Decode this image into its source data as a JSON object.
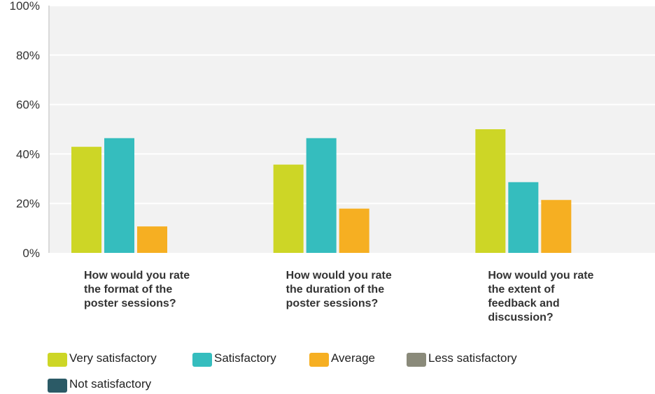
{
  "chart_data": {
    "type": "bar",
    "title": "",
    "xlabel": "",
    "ylabel": "",
    "ylim": [
      0,
      100
    ],
    "y_ticks": [
      "0%",
      "20%",
      "40%",
      "60%",
      "80%",
      "100%"
    ],
    "y_tick_values": [
      0,
      20,
      40,
      60,
      80,
      100
    ],
    "grid": true,
    "legend_position": "bottom",
    "categories": [
      [
        "How would you rate",
        "the format of the",
        "poster sessions?"
      ],
      [
        "How would you rate",
        "the duration of the",
        "poster sessions?"
      ],
      [
        "How would you rate",
        "the extent of",
        "feedback and",
        "discussion?"
      ]
    ],
    "series": [
      {
        "name": "Very satisfactory",
        "color": "#cdd626",
        "values": [
          42.9,
          35.7,
          50.0
        ]
      },
      {
        "name": "Satisfactory",
        "color": "#35bdbe",
        "values": [
          46.4,
          46.4,
          28.6
        ]
      },
      {
        "name": "Average",
        "color": "#f6af22",
        "values": [
          10.7,
          17.9,
          21.4
        ]
      },
      {
        "name": "Less satisfactory",
        "color": "#8a8a7a",
        "values": [
          0,
          0,
          0
        ]
      },
      {
        "name": "Not satisfactory",
        "color": "#2b5a66",
        "values": [
          0,
          0,
          0
        ]
      }
    ]
  }
}
